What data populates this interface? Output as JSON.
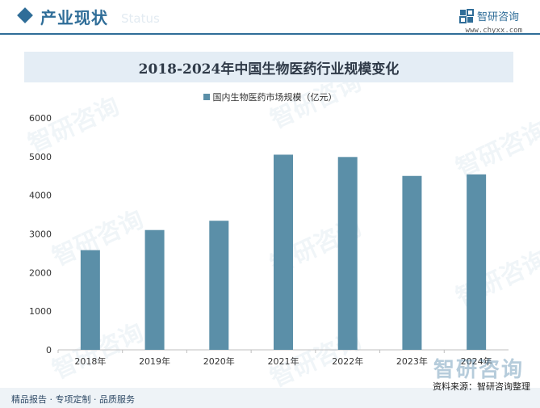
{
  "header": {
    "section_title": "产业现状",
    "section_watermark": "Status",
    "brand_name": "智研咨询",
    "brand_url": "www.chyxx.com"
  },
  "watermark_text": "智研咨询",
  "colors": {
    "accent": "#2f6d98",
    "bar": "#5b8fa8",
    "banner_bg": "#e4edf5"
  },
  "chart_data": {
    "type": "bar",
    "title": "2018-2024年中国生物医药行业规模变化",
    "categories": [
      "2018年",
      "2019年",
      "2020年",
      "2021年",
      "2022年",
      "2023年",
      "2024年"
    ],
    "series": [
      {
        "name": "国内生物医药市场规模（亿元）",
        "values": [
          2580,
          3100,
          3340,
          5050,
          4990,
          4500,
          4540
        ]
      }
    ],
    "ylim": [
      0,
      6000
    ],
    "yticks": [
      0,
      1000,
      2000,
      3000,
      4000,
      5000,
      6000
    ],
    "xlabel": "",
    "ylabel": "",
    "legend_position": "top-center",
    "grid": false
  },
  "footer": {
    "left_text": "精品报告 · 专项定制 · 品质服务",
    "source_text": "资料来源：智研咨询整理"
  }
}
